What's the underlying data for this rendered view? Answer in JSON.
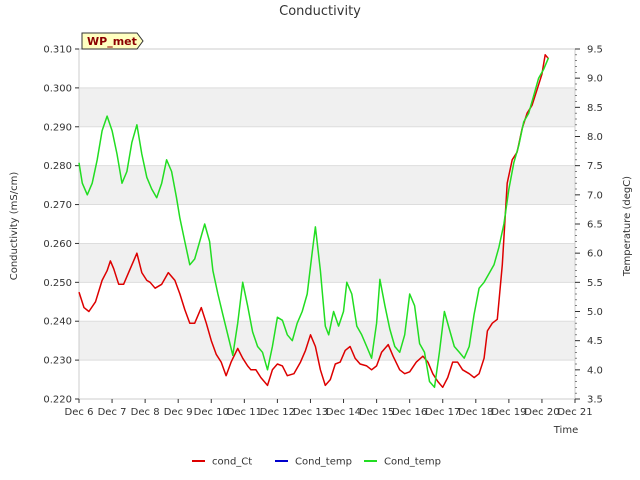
{
  "chart_data": {
    "type": "line",
    "title": "Conductivity",
    "xlabel": "Time",
    "ylabel": "Conductivity (mS/cm)",
    "y2label": "Temperature (degC)",
    "station_label": "WP_met",
    "xlim": [
      6,
      21
    ],
    "ylim": [
      0.22,
      0.31
    ],
    "y2lim": [
      3.5,
      9.5
    ],
    "x_ticks": [
      "Dec 6",
      "Dec 7",
      "Dec 8",
      "Dec 9",
      "Dec 10",
      "Dec 11",
      "Dec 12",
      "Dec 13",
      "Dec 14",
      "Dec 15",
      "Dec 16",
      "Dec 17",
      "Dec 18",
      "Dec 19",
      "Dec 20",
      "Dec 21"
    ],
    "y_ticks": [
      "0.220",
      "0.230",
      "0.240",
      "0.250",
      "0.260",
      "0.270",
      "0.280",
      "0.290",
      "0.300",
      "0.310"
    ],
    "y2_ticks": [
      "3.5",
      "4.0",
      "4.5",
      "5.0",
      "5.5",
      "6.0",
      "6.5",
      "7.0",
      "7.5",
      "8.0",
      "8.5",
      "9.0",
      "9.5"
    ],
    "legend": [
      {
        "name": "cond_Ct",
        "color": "#dd0000"
      },
      {
        "name": "Cond_temp",
        "color": "#0000cc"
      },
      {
        "name": "Cond_temp",
        "color": "#22dd22"
      }
    ],
    "series": [
      {
        "name": "cond_Ct",
        "axis": "left",
        "color": "#dd0000",
        "x": [
          6.0,
          6.15,
          6.3,
          6.5,
          6.7,
          6.85,
          6.95,
          7.05,
          7.2,
          7.35,
          7.5,
          7.75,
          7.9,
          8.05,
          8.15,
          8.3,
          8.5,
          8.7,
          8.9,
          9.05,
          9.2,
          9.35,
          9.5,
          9.7,
          9.85,
          10.0,
          10.15,
          10.3,
          10.45,
          10.6,
          10.8,
          10.95,
          11.1,
          11.2,
          11.35,
          11.5,
          11.7,
          11.85,
          12.0,
          12.15,
          12.3,
          12.5,
          12.7,
          12.85,
          13.0,
          13.15,
          13.3,
          13.45,
          13.6,
          13.75,
          13.9,
          14.05,
          14.2,
          14.35,
          14.5,
          14.7,
          14.85,
          15.0,
          15.15,
          15.35,
          15.5,
          15.7,
          15.85,
          16.0,
          16.2,
          16.4,
          16.55,
          16.7,
          16.85,
          17.0,
          17.15,
          17.3,
          17.45,
          17.6,
          17.8,
          17.95,
          18.1,
          18.25,
          18.35,
          18.5,
          18.65,
          18.8,
          18.95,
          19.1,
          19.25,
          19.4,
          19.55,
          19.7,
          19.85,
          20.0,
          20.1,
          20.2
        ],
        "y": [
          0.2475,
          0.2435,
          0.2425,
          0.245,
          0.2505,
          0.253,
          0.2555,
          0.2535,
          0.2495,
          0.2495,
          0.2525,
          0.2575,
          0.2525,
          0.2505,
          0.25,
          0.2485,
          0.2495,
          0.2525,
          0.2505,
          0.247,
          0.243,
          0.2395,
          0.2395,
          0.2435,
          0.2395,
          0.235,
          0.2315,
          0.2295,
          0.226,
          0.2295,
          0.233,
          0.2305,
          0.2285,
          0.2275,
          0.2275,
          0.2255,
          0.2235,
          0.2275,
          0.229,
          0.2285,
          0.226,
          0.2265,
          0.2295,
          0.2325,
          0.2365,
          0.2335,
          0.2275,
          0.2235,
          0.225,
          0.229,
          0.2295,
          0.2325,
          0.2335,
          0.2305,
          0.229,
          0.2285,
          0.2275,
          0.2285,
          0.232,
          0.234,
          0.231,
          0.2275,
          0.2265,
          0.227,
          0.2295,
          0.231,
          0.2295,
          0.2265,
          0.2245,
          0.223,
          0.2255,
          0.2295,
          0.2295,
          0.2275,
          0.2265,
          0.2255,
          0.2265,
          0.2305,
          0.2375,
          0.2395,
          0.2405,
          0.2545,
          0.2755,
          0.2815,
          0.2835,
          0.2895,
          0.2935,
          0.2955,
          0.2995,
          0.3035,
          0.3085,
          0.3075
        ]
      },
      {
        "name": "Cond_temp",
        "axis": "right",
        "color": "#22dd22",
        "x": [
          6.0,
          6.1,
          6.25,
          6.4,
          6.55,
          6.7,
          6.85,
          7.0,
          7.15,
          7.3,
          7.45,
          7.6,
          7.75,
          7.9,
          8.05,
          8.2,
          8.35,
          8.5,
          8.65,
          8.8,
          8.95,
          9.05,
          9.2,
          9.35,
          9.5,
          9.65,
          9.8,
          9.95,
          10.05,
          10.2,
          10.35,
          10.5,
          10.65,
          10.8,
          10.95,
          11.1,
          11.25,
          11.4,
          11.55,
          11.7,
          11.85,
          12.0,
          12.15,
          12.3,
          12.45,
          12.6,
          12.75,
          12.9,
          13.05,
          13.15,
          13.3,
          13.45,
          13.55,
          13.7,
          13.85,
          14.0,
          14.1,
          14.25,
          14.4,
          14.55,
          14.7,
          14.85,
          15.0,
          15.1,
          15.25,
          15.4,
          15.55,
          15.7,
          15.85,
          16.0,
          16.15,
          16.3,
          16.45,
          16.6,
          16.75,
          16.9,
          17.05,
          17.2,
          17.35,
          17.5,
          17.65,
          17.8,
          17.95,
          18.1,
          18.25,
          18.4,
          18.55,
          18.7,
          18.85,
          19.0,
          19.15,
          19.3,
          19.45,
          19.6,
          19.75,
          19.9,
          20.05,
          20.2
        ],
        "y": [
          7.55,
          7.2,
          7.0,
          7.2,
          7.6,
          8.1,
          8.35,
          8.1,
          7.7,
          7.2,
          7.4,
          7.9,
          8.2,
          7.7,
          7.3,
          7.1,
          6.95,
          7.2,
          7.6,
          7.4,
          6.95,
          6.6,
          6.2,
          5.8,
          5.9,
          6.2,
          6.5,
          6.2,
          5.7,
          5.3,
          4.95,
          4.6,
          4.25,
          4.8,
          5.5,
          5.1,
          4.65,
          4.4,
          4.3,
          4.0,
          4.4,
          4.9,
          4.85,
          4.6,
          4.5,
          4.8,
          5.0,
          5.3,
          6.0,
          6.45,
          5.7,
          4.75,
          4.6,
          5.0,
          4.75,
          5.0,
          5.5,
          5.3,
          4.75,
          4.6,
          4.4,
          4.2,
          4.8,
          5.55,
          5.1,
          4.7,
          4.4,
          4.3,
          4.6,
          5.3,
          5.1,
          4.45,
          4.3,
          3.8,
          3.7,
          4.3,
          5.0,
          4.7,
          4.4,
          4.3,
          4.2,
          4.4,
          4.95,
          5.4,
          5.5,
          5.65,
          5.8,
          6.1,
          6.5,
          7.1,
          7.55,
          7.85,
          8.25,
          8.4,
          8.7,
          9.0,
          9.15,
          9.35
        ]
      }
    ]
  }
}
